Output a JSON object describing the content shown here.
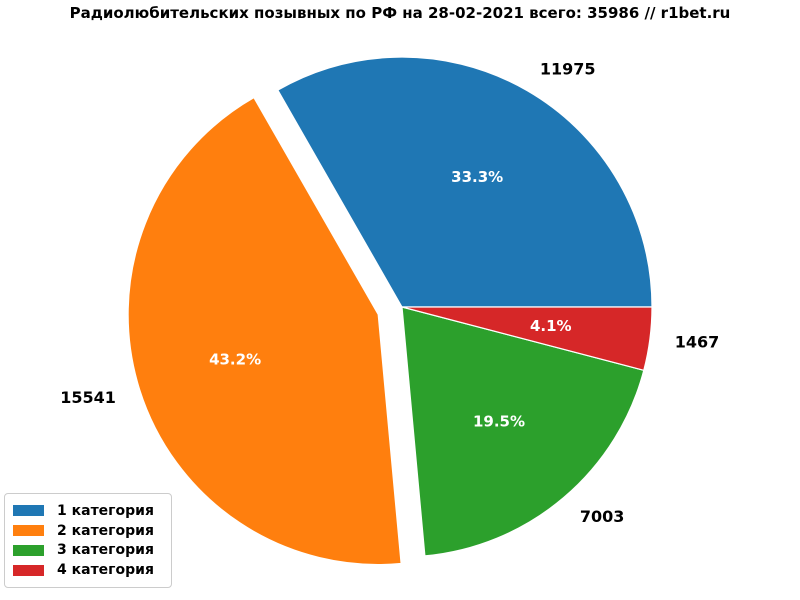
{
  "title": "Радиолюбительских позывных по РФ на 28-02-2021 всего: 35986 // r1bet.ru",
  "chart_data": {
    "type": "pie",
    "title": "Радиолюбительских позывных по РФ на 28-02-2021 всего: 35986 // r1bet.ru",
    "date_shown": "28-02-2021",
    "total": 35986,
    "labels": [
      "1 категория",
      "2 категория",
      "3 категория",
      "4 категория"
    ],
    "values": [
      11975,
      15541,
      7003,
      1467
    ],
    "percent_labels": [
      "33.3%",
      "43.2%",
      "19.5%",
      "4.1%"
    ],
    "colors": [
      "#1f77b4",
      "#ff7f0e",
      "#2ca02c",
      "#d62728"
    ],
    "explode": [
      0,
      0.1,
      0,
      0
    ],
    "start_angle": 0,
    "counterclock": true,
    "legend_position": "lower left",
    "pct_text_color": "#ffffff",
    "label_text_color": "#000000"
  }
}
